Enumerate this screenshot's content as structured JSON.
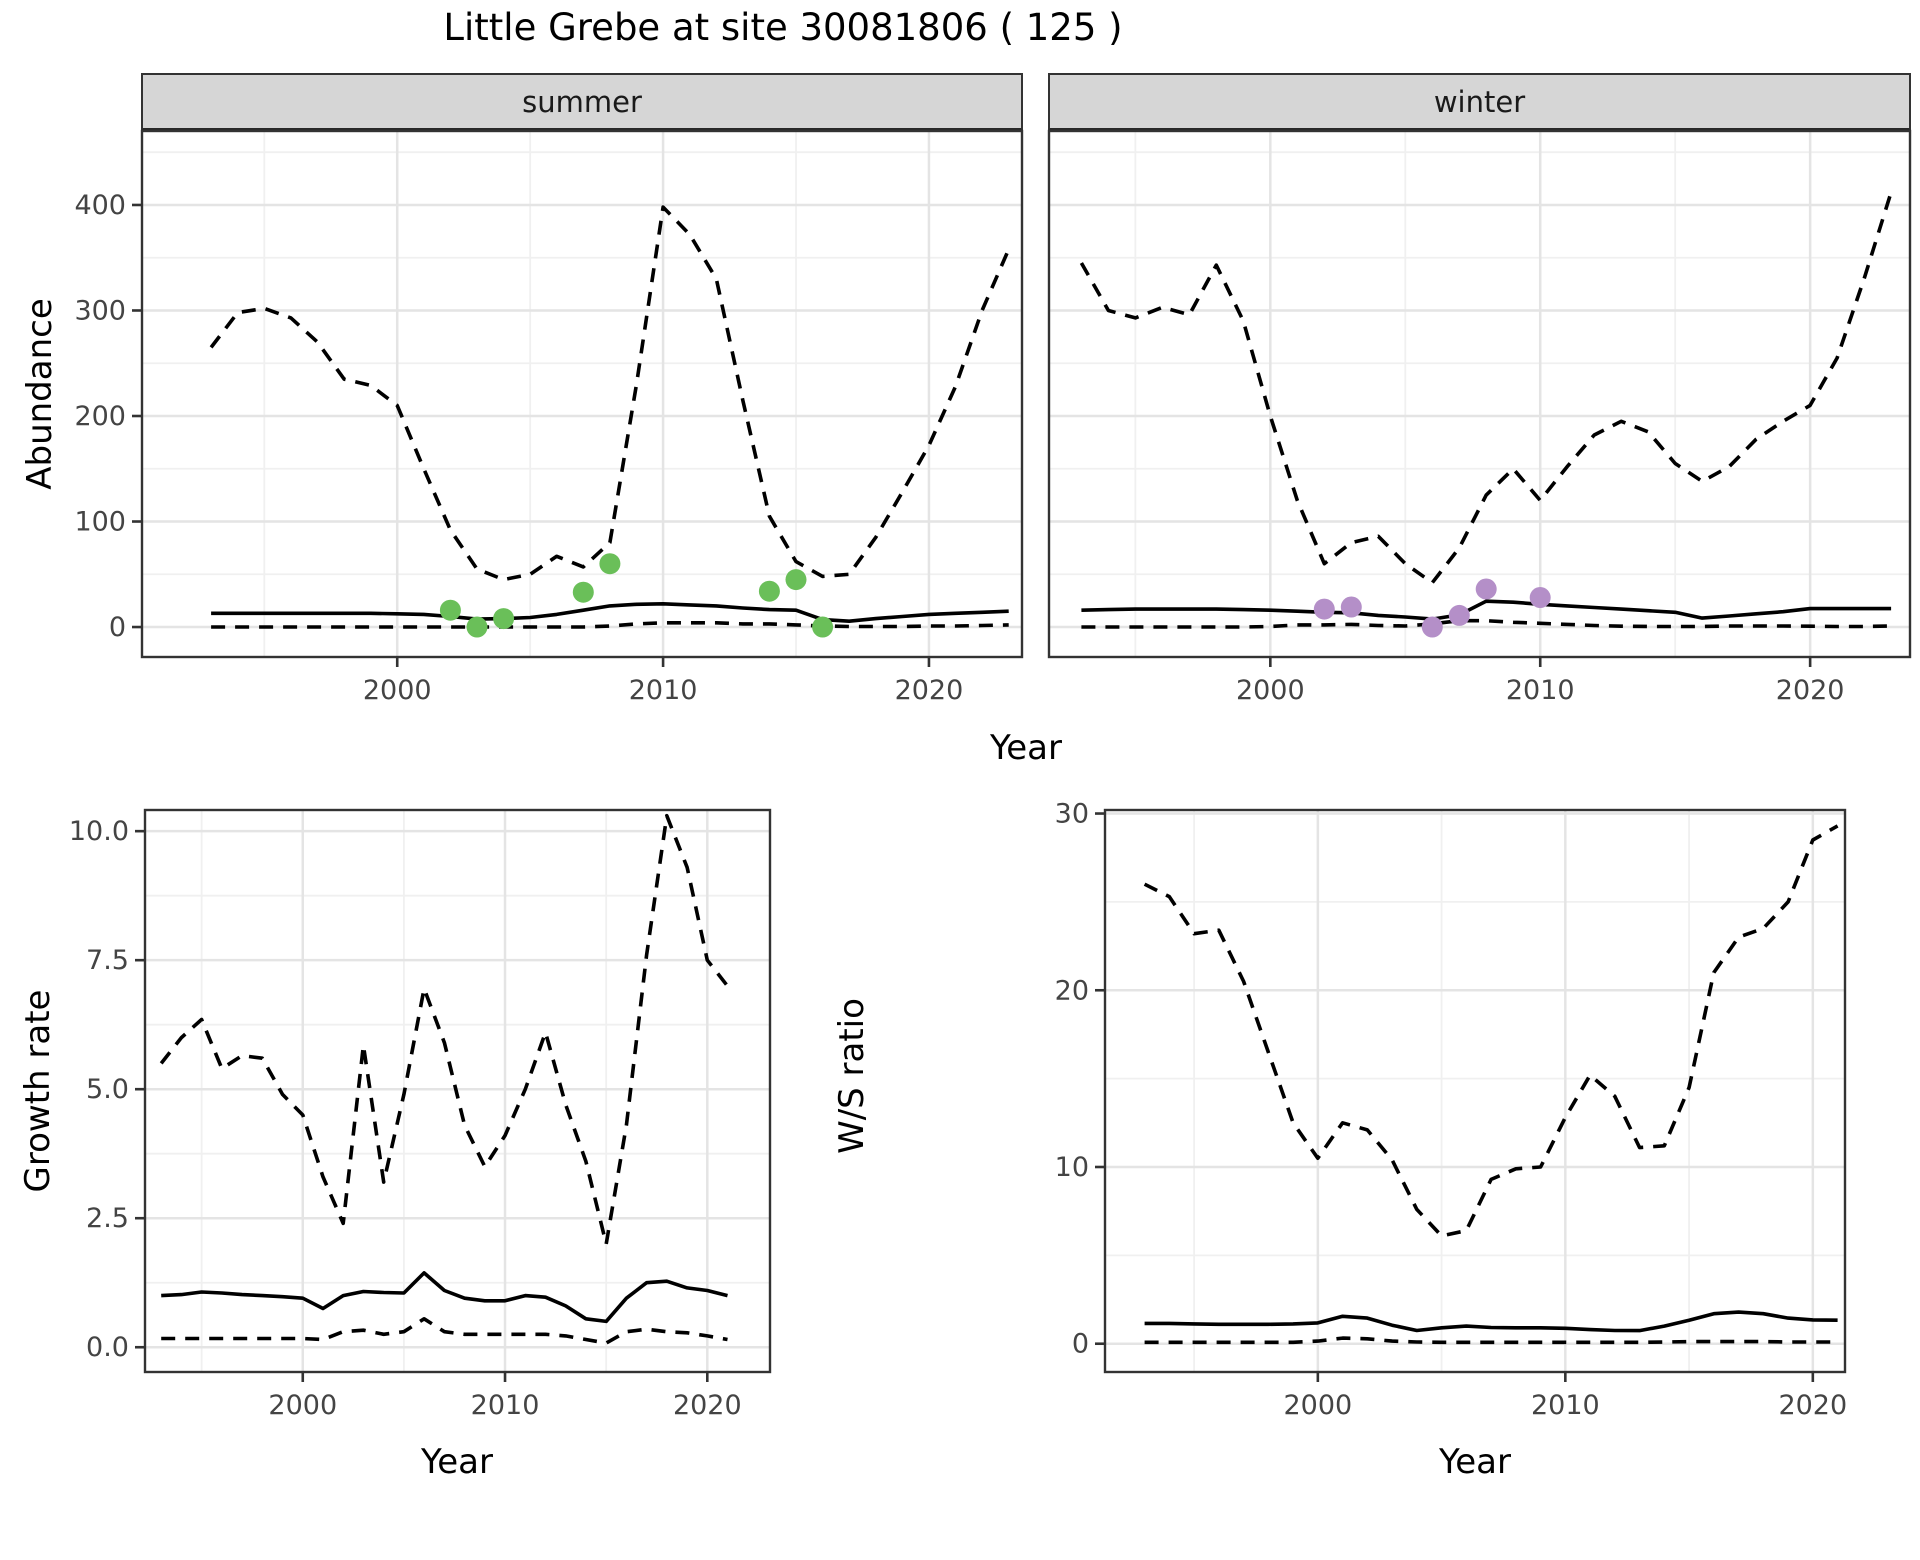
{
  "title": "Little Grebe at site 30081806 ( 125 )",
  "facets": {
    "summer": "summer",
    "winter": "winter"
  },
  "axis_titles": {
    "abundance": "Abundance",
    "year": "Year",
    "growth_rate": "Growth rate",
    "ws_ratio": "W/S ratio"
  },
  "colors": {
    "summer_points": "#6abf59",
    "winter_points": "#b48fc8",
    "line": "#000000",
    "strip_fill": "#d6d6d6",
    "grid_major": "#e4e4e4",
    "grid_minor": "#f0f0f0",
    "axis_text": "#444444",
    "panel_border": "#333333"
  },
  "chart_data": [
    {
      "id": "abundance-summer",
      "type": "line",
      "facet": "summer",
      "xlabel": "Year",
      "ylabel": "Abundance",
      "xlim": [
        1990.4,
        2023.5
      ],
      "ylim": [
        -28.4,
        470.1
      ],
      "xticks": {
        "values": [
          2000,
          2010,
          2020
        ],
        "labels": [
          "2000",
          "2010",
          "2020"
        ]
      },
      "yticks": {
        "values": [
          0,
          100,
          200,
          300,
          400
        ],
        "labels": [
          "0",
          "100",
          "200",
          "300",
          "400"
        ]
      },
      "x": [
        1993,
        1994,
        1995,
        1996,
        1997,
        1998,
        1999,
        2000,
        2001,
        2002,
        2003,
        2004,
        2005,
        2006,
        2007,
        2008,
        2009,
        2010,
        2011,
        2012,
        2013,
        2014,
        2015,
        2016,
        2017,
        2018,
        2019,
        2020,
        2021,
        2022,
        2023
      ],
      "series": [
        {
          "name": "upper_credible_dashed",
          "style": "dashed",
          "values": [
            265,
            298,
            302,
            293,
            270,
            235,
            229,
            210,
            150,
            92,
            55,
            45,
            50,
            67,
            57,
            80,
            230,
            398,
            372,
            330,
            215,
            105,
            62,
            48,
            50,
            85,
            128,
            172,
            228,
            300,
            358
          ]
        },
        {
          "name": "median_solid",
          "style": "solid",
          "values": [
            13,
            13,
            13,
            13,
            13,
            13,
            13,
            12.5,
            12,
            10,
            7.5,
            8,
            9,
            12,
            16,
            20,
            21.5,
            22,
            21,
            20,
            18,
            16.5,
            16,
            7,
            5.5,
            8,
            10,
            12,
            13,
            14,
            15
          ]
        },
        {
          "name": "lower_credible_dashed",
          "style": "dashed",
          "values": [
            0,
            0,
            0,
            0,
            0,
            0,
            0,
            0,
            0,
            0,
            0,
            0,
            0,
            0,
            0,
            1,
            3,
            4,
            4,
            4,
            3,
            3,
            2,
            1,
            0.5,
            0.5,
            0.5,
            1,
            1,
            1.5,
            2
          ]
        }
      ],
      "points": {
        "name": "observed_summer_counts",
        "color_key": "summer_points",
        "data": [
          [
            2002,
            16
          ],
          [
            2003,
            0
          ],
          [
            2004,
            8
          ],
          [
            2007,
            33
          ],
          [
            2008,
            60
          ],
          [
            2014,
            34
          ],
          [
            2015,
            45
          ],
          [
            2016,
            0
          ]
        ]
      }
    },
    {
      "id": "abundance-winter",
      "type": "line",
      "facet": "winter",
      "xlabel": "Year",
      "ylabel": "Abundance",
      "xlim": [
        1991.8,
        2023.7
      ],
      "ylim": [
        -28.4,
        470.1
      ],
      "xticks": {
        "values": [
          2000,
          2010,
          2020
        ],
        "labels": [
          "2000",
          "2010",
          "2020"
        ]
      },
      "yticks": {
        "values": [
          0,
          100,
          200,
          300,
          400
        ],
        "labels": [
          "0",
          "100",
          "200",
          "300",
          "400"
        ]
      },
      "x": [
        1993,
        1994,
        1995,
        1996,
        1997,
        1998,
        1999,
        2000,
        2001,
        2002,
        2003,
        2004,
        2005,
        2006,
        2007,
        2008,
        2009,
        2010,
        2011,
        2012,
        2013,
        2014,
        2015,
        2016,
        2017,
        2018,
        2019,
        2020,
        2021,
        2022,
        2023
      ],
      "series": [
        {
          "name": "upper_credible_dashed",
          "style": "dashed",
          "values": [
            345,
            300,
            293,
            303,
            296,
            343,
            290,
            200,
            120,
            60,
            80,
            86,
            60,
            42,
            75,
            125,
            150,
            120,
            152,
            182,
            195,
            185,
            155,
            138,
            152,
            178,
            195,
            210,
            255,
            330,
            412
          ]
        },
        {
          "name": "median_solid",
          "style": "solid",
          "values": [
            16,
            16.5,
            17,
            17,
            17,
            17,
            16.5,
            16,
            15,
            14,
            13.5,
            11,
            9.5,
            7.5,
            11.5,
            24.5,
            23.5,
            21.5,
            20,
            18.5,
            17,
            15.5,
            14,
            8.5,
            10.5,
            12.5,
            14.5,
            17.5,
            17.5,
            17.5,
            17.5
          ]
        },
        {
          "name": "lower_credible_dashed",
          "style": "dashed",
          "values": [
            0,
            0,
            0,
            0,
            0,
            0,
            0,
            0.5,
            2,
            2,
            2.5,
            1.5,
            1,
            3,
            6,
            6,
            4.5,
            3.5,
            2.5,
            1.5,
            0.8,
            0.5,
            0.5,
            0.5,
            1,
            1,
            1,
            0.8,
            0.5,
            0.5,
            1
          ]
        }
      ],
      "points": {
        "name": "observed_winter_counts",
        "color_key": "winter_points",
        "data": [
          [
            2002,
            17
          ],
          [
            2003,
            19
          ],
          [
            2006,
            0
          ],
          [
            2007,
            11
          ],
          [
            2008,
            36
          ],
          [
            2010,
            28
          ]
        ]
      }
    },
    {
      "id": "growth-rate",
      "type": "line",
      "facet": "",
      "xlabel": "Year",
      "ylabel": "Growth rate",
      "xlim": [
        1992.2,
        2023.1
      ],
      "ylim": [
        -0.48,
        10.41
      ],
      "xticks": {
        "values": [
          2000,
          2010,
          2020
        ],
        "labels": [
          "2000",
          "2010",
          "2020"
        ]
      },
      "yticks": {
        "values": [
          0,
          2.5,
          5,
          7.5,
          10
        ],
        "labels": [
          "0.0",
          "2.5",
          "5.0",
          "7.5",
          "10.0"
        ]
      },
      "x": [
        1993,
        1994,
        1995,
        1996,
        1997,
        1998,
        1999,
        2000,
        2001,
        2002,
        2003,
        2004,
        2005,
        2006,
        2007,
        2008,
        2009,
        2010,
        2011,
        2012,
        2013,
        2014,
        2015,
        2016,
        2017,
        2018,
        2019,
        2020,
        2021
      ],
      "series": [
        {
          "name": "upper_credible_dashed",
          "style": "dashed",
          "values": [
            5.5,
            6.0,
            6.35,
            5.4,
            5.65,
            5.6,
            4.9,
            4.5,
            3.3,
            2.4,
            5.85,
            3.2,
            4.9,
            6.95,
            5.9,
            4.3,
            3.5,
            4.1,
            5.0,
            6.1,
            4.7,
            3.6,
            2.0,
            4.3,
            7.6,
            10.3,
            9.3,
            7.5,
            7.0
          ]
        },
        {
          "name": "median_solid",
          "style": "solid",
          "values": [
            1.0,
            1.02,
            1.07,
            1.05,
            1.02,
            1.0,
            0.98,
            0.95,
            0.75,
            1.0,
            1.08,
            1.06,
            1.05,
            1.44,
            1.1,
            0.95,
            0.9,
            0.9,
            1.0,
            0.97,
            0.8,
            0.55,
            0.5,
            0.95,
            1.25,
            1.28,
            1.15,
            1.1,
            1.0
          ]
        },
        {
          "name": "lower_credible_dashed",
          "style": "dashed",
          "values": [
            0.17,
            0.17,
            0.17,
            0.17,
            0.17,
            0.17,
            0.17,
            0.17,
            0.15,
            0.3,
            0.33,
            0.25,
            0.3,
            0.55,
            0.3,
            0.25,
            0.25,
            0.25,
            0.25,
            0.25,
            0.22,
            0.15,
            0.08,
            0.3,
            0.35,
            0.3,
            0.28,
            0.22,
            0.15
          ]
        }
      ],
      "points": null
    },
    {
      "id": "ws-ratio",
      "type": "line",
      "facet": "",
      "xlabel": "Year",
      "ylabel": "W/S ratio",
      "xlim": [
        1991.4,
        2021.3
      ],
      "ylim": [
        -1.6,
        30.2
      ],
      "xticks": {
        "values": [
          2000,
          2010,
          2020
        ],
        "labels": [
          "2000",
          "2010",
          "2020"
        ]
      },
      "yticks": {
        "values": [
          0,
          10,
          20,
          30
        ],
        "labels": [
          "0",
          "10",
          "20",
          "30"
        ]
      },
      "x": [
        1993,
        1994,
        1995,
        1996,
        1997,
        1998,
        1999,
        2000,
        2001,
        2002,
        2003,
        2004,
        2005,
        2006,
        2007,
        2008,
        2009,
        2010,
        2011,
        2012,
        2013,
        2014,
        2015,
        2016,
        2017,
        2018,
        2019,
        2020,
        2021
      ],
      "series": [
        {
          "name": "upper_credible_dashed",
          "style": "dashed",
          "values": [
            26,
            25.3,
            23.2,
            23.4,
            20.5,
            16.5,
            12.5,
            10.5,
            12.5,
            12.1,
            10.4,
            7.6,
            6.1,
            6.4,
            9.3,
            9.9,
            10.0,
            12.8,
            15.2,
            14.0,
            11.1,
            11.2,
            14.5,
            21.0,
            23.0,
            23.5,
            25.0,
            28.5,
            29.3
          ]
        },
        {
          "name": "median_solid",
          "style": "solid",
          "values": [
            1.15,
            1.15,
            1.12,
            1.1,
            1.1,
            1.1,
            1.12,
            1.18,
            1.55,
            1.45,
            1.05,
            0.75,
            0.9,
            1.0,
            0.92,
            0.9,
            0.9,
            0.87,
            0.8,
            0.75,
            0.74,
            1.0,
            1.33,
            1.7,
            1.79,
            1.7,
            1.45,
            1.35,
            1.33
          ]
        },
        {
          "name": "lower_credible_dashed",
          "style": "dashed",
          "values": [
            0.08,
            0.08,
            0.08,
            0.08,
            0.08,
            0.08,
            0.08,
            0.15,
            0.32,
            0.28,
            0.15,
            0.1,
            0.08,
            0.08,
            0.08,
            0.08,
            0.08,
            0.08,
            0.08,
            0.08,
            0.08,
            0.1,
            0.12,
            0.12,
            0.12,
            0.12,
            0.1,
            0.1,
            0.1
          ]
        }
      ],
      "points": null
    }
  ]
}
